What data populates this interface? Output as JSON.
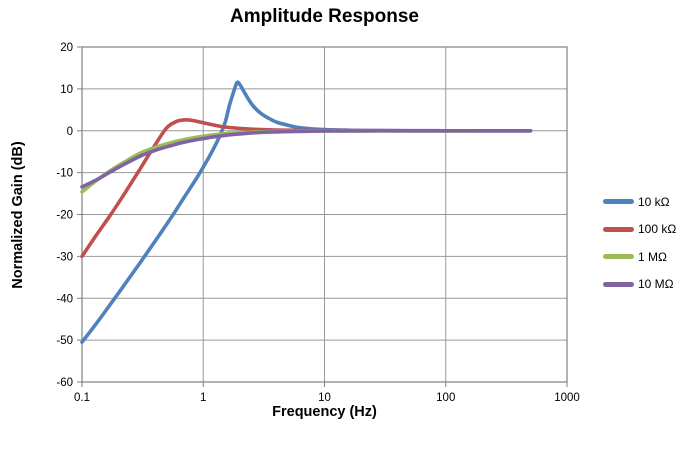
{
  "chart_data": {
    "type": "line",
    "title": "Amplitude Response",
    "xlabel": "Frequency (Hz)",
    "ylabel": "Normalized Gain (dB)",
    "x_scale": "log",
    "xlim": [
      0.1,
      1000
    ],
    "ylim": [
      -60,
      20
    ],
    "x_ticks": [
      0.1,
      1,
      10,
      100,
      1000
    ],
    "x_tick_labels": [
      "0.1",
      "1",
      "10",
      "100",
      "1000"
    ],
    "y_ticks": [
      20,
      10,
      0,
      -10,
      -20,
      -30,
      -40,
      -50,
      -60
    ],
    "grid": true,
    "grid_color": "#999999",
    "axis_color": "#808080",
    "text_color": "#000000",
    "legend_position": "right",
    "series": [
      {
        "name": "10 kΩ",
        "color": "#4F81BD",
        "points": [
          [
            0.1,
            -50.5
          ],
          [
            0.13,
            -46.2
          ],
          [
            0.17,
            -41.6
          ],
          [
            0.22,
            -37.1
          ],
          [
            0.3,
            -31.6
          ],
          [
            0.4,
            -26.4
          ],
          [
            0.55,
            -20.5
          ],
          [
            0.7,
            -15.8
          ],
          [
            0.9,
            -10.9
          ],
          [
            1.1,
            -6.6
          ],
          [
            1.3,
            -2.6
          ],
          [
            1.5,
            1.6
          ],
          [
            1.65,
            6.2
          ],
          [
            1.8,
            9.7
          ],
          [
            1.9,
            11.5
          ],
          [
            2.0,
            11.1
          ],
          [
            2.15,
            9.5
          ],
          [
            2.35,
            7.6
          ],
          [
            2.6,
            5.8
          ],
          [
            3.0,
            4.1
          ],
          [
            3.5,
            2.9
          ],
          [
            4.0,
            2.1
          ],
          [
            5.0,
            1.3
          ],
          [
            6.0,
            0.8
          ],
          [
            8.0,
            0.45
          ],
          [
            10,
            0.3
          ],
          [
            15,
            0.15
          ],
          [
            20,
            0.08
          ],
          [
            50,
            0.02
          ],
          [
            100,
            0
          ],
          [
            200,
            0
          ],
          [
            500,
            0
          ]
        ]
      },
      {
        "name": "100 kΩ",
        "color": "#C0504D",
        "points": [
          [
            0.1,
            -30
          ],
          [
            0.13,
            -25.1
          ],
          [
            0.17,
            -20.3
          ],
          [
            0.22,
            -15.4
          ],
          [
            0.3,
            -9.2
          ],
          [
            0.4,
            -3.4
          ],
          [
            0.5,
            0.7
          ],
          [
            0.6,
            2.2
          ],
          [
            0.7,
            2.6
          ],
          [
            0.8,
            2.5
          ],
          [
            0.9,
            2.2
          ],
          [
            1.0,
            1.9
          ],
          [
            1.2,
            1.4
          ],
          [
            1.5,
            0.9
          ],
          [
            1.9,
            0.6
          ],
          [
            2.4,
            0.4
          ],
          [
            3.0,
            0.28
          ],
          [
            4.0,
            0.18
          ],
          [
            5.0,
            0.12
          ],
          [
            7.0,
            0.07
          ],
          [
            10,
            0.04
          ],
          [
            20,
            0.01
          ],
          [
            50,
            0
          ],
          [
            100,
            0
          ],
          [
            200,
            0
          ],
          [
            500,
            0
          ]
        ]
      },
      {
        "name": "1 MΩ",
        "color": "#9BBB59",
        "points": [
          [
            0.1,
            -14.6
          ],
          [
            0.13,
            -12.0
          ],
          [
            0.17,
            -9.6
          ],
          [
            0.22,
            -7.6
          ],
          [
            0.3,
            -5.4
          ],
          [
            0.4,
            -4.0
          ],
          [
            0.55,
            -2.8
          ],
          [
            0.7,
            -2.1
          ],
          [
            0.9,
            -1.5
          ],
          [
            1.2,
            -1.0
          ],
          [
            1.5,
            -0.72
          ],
          [
            2.0,
            -0.45
          ],
          [
            2.6,
            -0.3
          ],
          [
            3.5,
            -0.18
          ],
          [
            5,
            -0.1
          ],
          [
            7,
            -0.06
          ],
          [
            10,
            -0.03
          ],
          [
            20,
            -0.01
          ],
          [
            50,
            0
          ],
          [
            100,
            0
          ],
          [
            200,
            0
          ],
          [
            500,
            0
          ]
        ]
      },
      {
        "name": "10 MΩ",
        "color": "#8064A2",
        "points": [
          [
            0.1,
            -13.4
          ],
          [
            0.13,
            -11.8
          ],
          [
            0.17,
            -9.9
          ],
          [
            0.22,
            -8.1
          ],
          [
            0.3,
            -6.1
          ],
          [
            0.4,
            -4.7
          ],
          [
            0.55,
            -3.5
          ],
          [
            0.7,
            -2.7
          ],
          [
            0.9,
            -2.1
          ],
          [
            1.2,
            -1.5
          ],
          [
            1.5,
            -1.1
          ],
          [
            2.0,
            -0.75
          ],
          [
            2.6,
            -0.5
          ],
          [
            3.5,
            -0.32
          ],
          [
            5,
            -0.2
          ],
          [
            7,
            -0.12
          ],
          [
            10,
            -0.07
          ],
          [
            20,
            -0.03
          ],
          [
            50,
            -0.01
          ],
          [
            100,
            0
          ],
          [
            200,
            0
          ],
          [
            500,
            0
          ]
        ]
      }
    ]
  }
}
